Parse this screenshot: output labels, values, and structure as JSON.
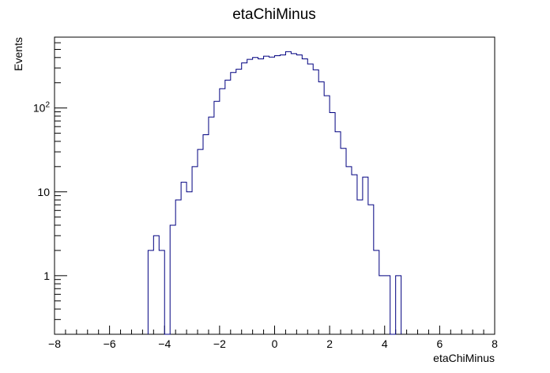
{
  "chart_data": {
    "type": "histogram",
    "title": "etaChiMinus",
    "xlabel": "etaChiMinus",
    "ylabel": "Events",
    "xlim": [
      -8,
      8
    ],
    "ylim": [
      0.2,
      700
    ],
    "yscale": "log",
    "xticks": [
      -8,
      -6,
      -4,
      -2,
      0,
      2,
      4,
      6,
      8
    ],
    "xtick_labels": [
      "−8",
      "−6",
      "−4",
      "−2",
      "0",
      "2",
      "4",
      "6",
      "8"
    ],
    "yticks": [
      1,
      10,
      100
    ],
    "ytick_labels": [
      "1",
      "10",
      "10^2"
    ],
    "line_color": "#000080",
    "grid": false,
    "legend": "none",
    "bin_width": 0.2,
    "bins": [
      {
        "x0": -4.6,
        "v": 2
      },
      {
        "x0": -4.4,
        "v": 3
      },
      {
        "x0": -4.2,
        "v": 2
      },
      {
        "x0": -4.0,
        "v": 0
      },
      {
        "x0": -3.8,
        "v": 4
      },
      {
        "x0": -3.6,
        "v": 8
      },
      {
        "x0": -3.4,
        "v": 13
      },
      {
        "x0": -3.2,
        "v": 10
      },
      {
        "x0": -3.0,
        "v": 20
      },
      {
        "x0": -2.8,
        "v": 32
      },
      {
        "x0": -2.6,
        "v": 48
      },
      {
        "x0": -2.4,
        "v": 78
      },
      {
        "x0": -2.2,
        "v": 120
      },
      {
        "x0": -2.0,
        "v": 170
      },
      {
        "x0": -1.8,
        "v": 215
      },
      {
        "x0": -1.6,
        "v": 265
      },
      {
        "x0": -1.4,
        "v": 290
      },
      {
        "x0": -1.2,
        "v": 345
      },
      {
        "x0": -1.0,
        "v": 380
      },
      {
        "x0": -0.8,
        "v": 400
      },
      {
        "x0": -0.6,
        "v": 385
      },
      {
        "x0": -0.4,
        "v": 415
      },
      {
        "x0": -0.2,
        "v": 405
      },
      {
        "x0": 0.0,
        "v": 420
      },
      {
        "x0": 0.2,
        "v": 430
      },
      {
        "x0": 0.4,
        "v": 470
      },
      {
        "x0": 0.6,
        "v": 445
      },
      {
        "x0": 0.8,
        "v": 430
      },
      {
        "x0": 1.0,
        "v": 385
      },
      {
        "x0": 1.2,
        "v": 335
      },
      {
        "x0": 1.4,
        "v": 285
      },
      {
        "x0": 1.6,
        "v": 205
      },
      {
        "x0": 1.8,
        "v": 140
      },
      {
        "x0": 2.0,
        "v": 88
      },
      {
        "x0": 2.2,
        "v": 52
      },
      {
        "x0": 2.4,
        "v": 33
      },
      {
        "x0": 2.6,
        "v": 20
      },
      {
        "x0": 2.8,
        "v": 16
      },
      {
        "x0": 3.0,
        "v": 8
      },
      {
        "x0": 3.2,
        "v": 15
      },
      {
        "x0": 3.4,
        "v": 7
      },
      {
        "x0": 3.6,
        "v": 2
      },
      {
        "x0": 3.8,
        "v": 1
      },
      {
        "x0": 4.0,
        "v": 1
      },
      {
        "x0": 4.2,
        "v": 0
      },
      {
        "x0": 4.4,
        "v": 1
      }
    ]
  }
}
